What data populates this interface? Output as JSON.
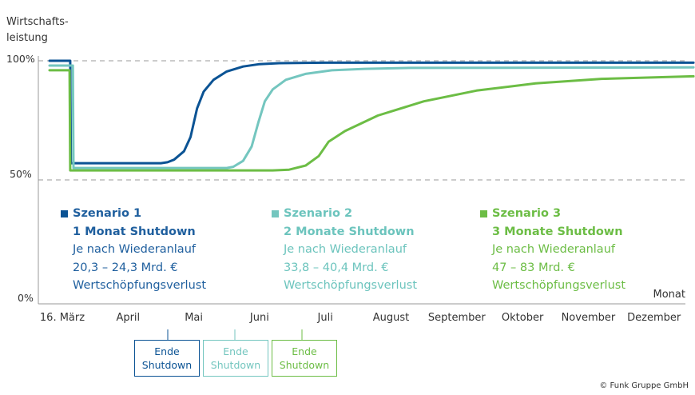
{
  "chart_data": {
    "type": "line",
    "ylabel": "Wirtschafts-\nleistung",
    "xlabel": "Monat",
    "x_ticks": [
      "16. März",
      "April",
      "Mai",
      "Juni",
      "Juli",
      "August",
      "September",
      "Oktober",
      "November",
      "Dezember"
    ],
    "y_ticks": [
      "100%",
      "50%",
      "0%"
    ],
    "ylim": [
      0,
      100
    ],
    "grid": "dashed at 100% and 50%",
    "series": [
      {
        "name": "Szenario 1",
        "color": "#0b5394",
        "points": [
          [
            -0.2,
            100
          ],
          [
            0.1,
            100
          ],
          [
            0.12,
            100
          ],
          [
            0.13,
            57
          ],
          [
            1.5,
            57
          ],
          [
            1.6,
            57.4
          ],
          [
            1.7,
            58.5
          ],
          [
            1.85,
            62
          ],
          [
            1.95,
            68
          ],
          [
            2.05,
            80
          ],
          [
            2.15,
            87
          ],
          [
            2.3,
            92
          ],
          [
            2.5,
            95.5
          ],
          [
            2.75,
            97.6
          ],
          [
            3.0,
            98.6
          ],
          [
            3.3,
            99
          ],
          [
            4,
            99.2
          ],
          [
            9.6,
            99.2
          ]
        ]
      },
      {
        "name": "Szenario 2",
        "color": "#74c6bf",
        "points": [
          [
            -0.2,
            98
          ],
          [
            0.15,
            98
          ],
          [
            0.16,
            98
          ],
          [
            0.17,
            55
          ],
          [
            2.5,
            55
          ],
          [
            2.6,
            55.5
          ],
          [
            2.75,
            58
          ],
          [
            2.88,
            64
          ],
          [
            2.98,
            74
          ],
          [
            3.08,
            83
          ],
          [
            3.2,
            88
          ],
          [
            3.4,
            92
          ],
          [
            3.7,
            94.5
          ],
          [
            4.1,
            96
          ],
          [
            4.6,
            96.6
          ],
          [
            5.3,
            97
          ],
          [
            9.6,
            97.2
          ]
        ]
      },
      {
        "name": "Szenario 3",
        "color": "#6cbd45",
        "points": [
          [
            -0.2,
            96
          ],
          [
            0.1,
            96
          ],
          [
            0.11,
            96
          ],
          [
            0.12,
            54
          ],
          [
            3.2,
            54
          ],
          [
            3.45,
            54.3
          ],
          [
            3.7,
            56
          ],
          [
            3.9,
            60
          ],
          [
            4.05,
            66
          ],
          [
            4.3,
            70.5
          ],
          [
            4.8,
            77
          ],
          [
            5.5,
            83
          ],
          [
            6.3,
            87.5
          ],
          [
            7.2,
            90.5
          ],
          [
            8.2,
            92.4
          ],
          [
            9.6,
            93.5
          ]
        ]
      }
    ]
  },
  "scenarios": [
    {
      "name": "Szenario 1",
      "title": "1 Monat Shutdown",
      "line1": "Je nach Wiederanlauf",
      "line2": "20,3 – 24,3 Mrd. €",
      "line3": "Wertschöpfungsverlust",
      "color": "#0b5394",
      "text_color": "#1f5f9e"
    },
    {
      "name": "Szenario 2",
      "title": "2 Monate Shutdown",
      "line1": "Je nach Wiederanlauf",
      "line2": "33,8 – 40,4 Mrd. €",
      "line3": "Wertschöpfungsverlust",
      "color": "#74c6bf",
      "text_color": "#6cc4bd"
    },
    {
      "name": "Szenario 3",
      "title": "3 Monate Shutdown",
      "line1": "Je nach Wiederanlauf",
      "line2": "47 – 83 Mrd. €",
      "line3": "Wertschöpfungsverlust",
      "color": "#6cbd45",
      "text_color": "#6cbd45"
    }
  ],
  "end_boxes": [
    {
      "line1": "Ende",
      "line2": "Shutdown",
      "color": "#0b5394"
    },
    {
      "line1": "Ende",
      "line2": "Shutdown",
      "color": "#74c6bf"
    },
    {
      "line1": "Ende",
      "line2": "Shutdown",
      "color": "#6cbd45"
    }
  ],
  "credit": "© Funk Gruppe GmbH"
}
